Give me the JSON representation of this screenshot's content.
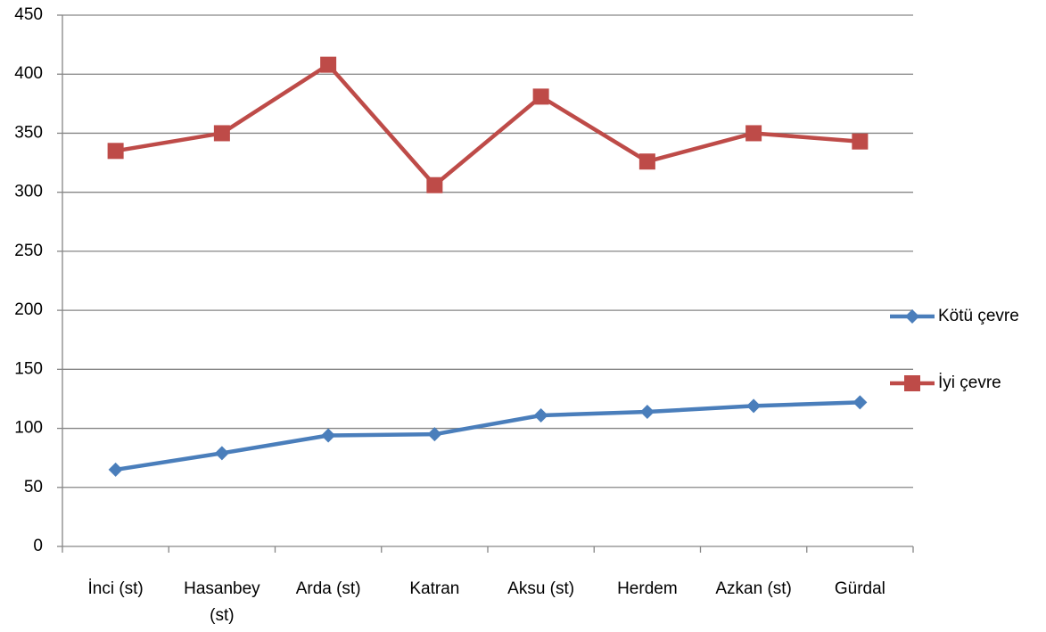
{
  "chart_data": {
    "type": "line",
    "categories": [
      "İnci (st)",
      "Hasanbey (st)",
      "Arda (st)",
      "Katran",
      "Aksu (st)",
      "Herdem",
      "Azkan (st)",
      "Gürdal"
    ],
    "series": [
      {
        "name": "Kötü çevre",
        "color": "#4a7ebb",
        "marker": "diamond",
        "values": [
          65,
          79,
          94,
          95,
          111,
          114,
          119,
          122
        ]
      },
      {
        "name": "İyi çevre",
        "color": "#be4b48",
        "marker": "square",
        "values": [
          335,
          350,
          408,
          306,
          381,
          326,
          350,
          343
        ]
      }
    ],
    "ylim": [
      0,
      450
    ],
    "yticks": [
      0,
      50,
      100,
      150,
      200,
      250,
      300,
      350,
      400,
      450
    ],
    "grid": true,
    "legend": "right"
  }
}
